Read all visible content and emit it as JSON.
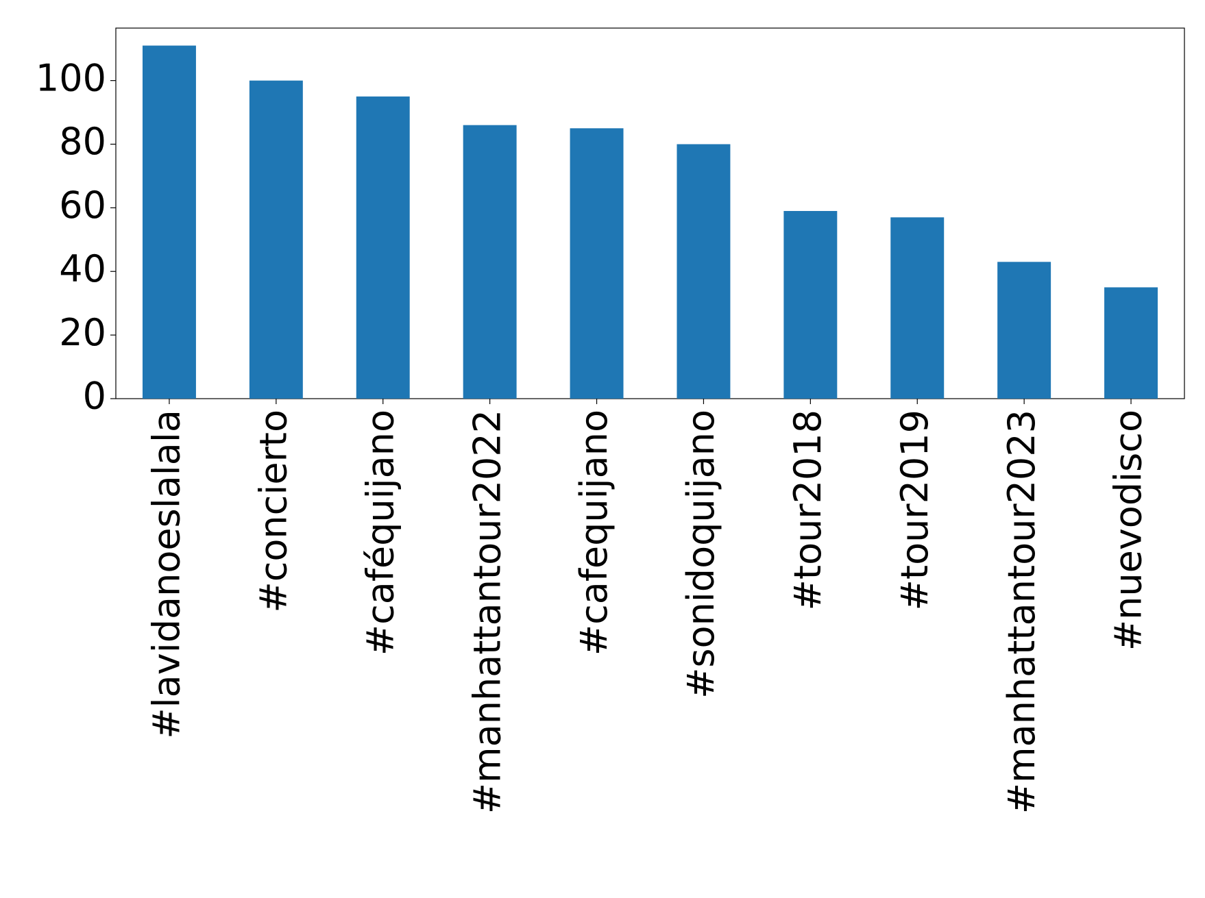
{
  "chart_data": {
    "type": "bar",
    "categories": [
      "#lavidanoeslalala",
      "#concierto",
      "#caféquijano",
      "#manhattantour2022",
      "#cafequijano",
      "#sonidoquijano",
      "#tour2018",
      "#tour2019",
      "#manhattantour2023",
      "#nuevodisco"
    ],
    "values": [
      111,
      100,
      95,
      86,
      85,
      80,
      59,
      57,
      43,
      35
    ],
    "color": "#1f77b4",
    "ylim": [
      0,
      116.5
    ],
    "yticks": [
      0,
      20,
      40,
      60,
      80,
      100
    ],
    "grid": false
  }
}
